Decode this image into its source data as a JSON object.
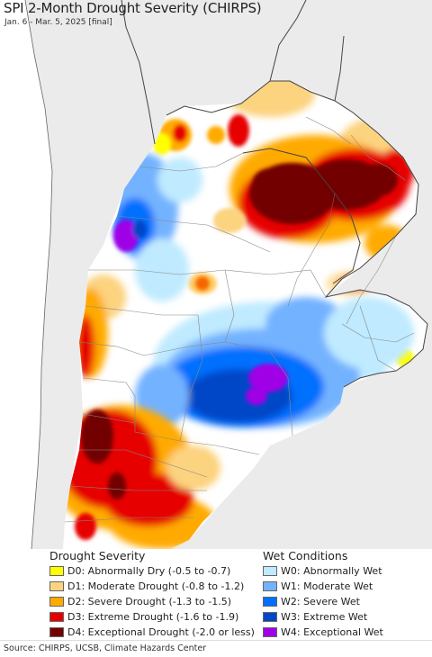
{
  "header": {
    "title": "SPI 2-Month Drought Severity (CHIRPS)",
    "subtitle": "Jan. 6 - Mar. 5, 2025 [final]"
  },
  "legend": {
    "drought_heading": "Drought Severity",
    "wet_heading": "Wet Conditions",
    "drought_items": [
      {
        "label": "D0: Abnormally Dry (-0.5 to -0.7)",
        "color": "#ffff00"
      },
      {
        "label": "D1: Moderate Drought (-0.8 to -1.2)",
        "color": "#fcd37f"
      },
      {
        "label": "D2: Severe Drought (-1.3 to -1.5)",
        "color": "#ffaa00"
      },
      {
        "label": "D3: Extreme Drought (-1.6 to -1.9)",
        "color": "#e60000"
      },
      {
        "label": "D4: Exceptional Drought (-2.0 or less)",
        "color": "#730000"
      }
    ],
    "wet_items": [
      {
        "label": "W0: Abnormally Wet",
        "color": "#bfeaff"
      },
      {
        "label": "W1: Moderate Wet",
        "color": "#73b2ff"
      },
      {
        "label": "W2: Severe Wet",
        "color": "#0070ff"
      },
      {
        "label": "W3: Extreme Wet",
        "color": "#0046c8"
      },
      {
        "label": "W4: Exceptional Wet",
        "color": "#a000e6"
      }
    ]
  },
  "footer": {
    "source": "Source: CHIRPS, UCSB, Climate Hazards Center"
  },
  "colors": {
    "outside_land": "#ebebeb",
    "ocean": "#ffffff",
    "normal": "#ffffff",
    "borders": "#555555"
  }
}
